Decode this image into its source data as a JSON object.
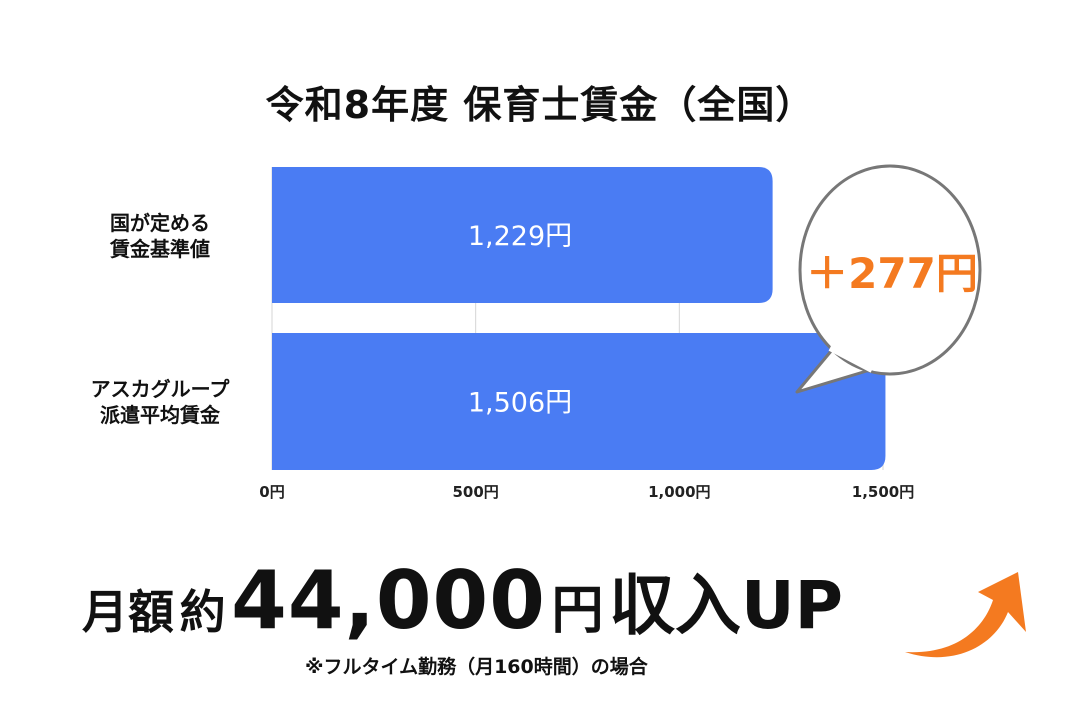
{
  "chart_data": {
    "type": "bar",
    "orientation": "horizontal",
    "title": "令和8年度 保育士賃金（全国）",
    "categories": [
      [
        "国が定める",
        "賃金基準値"
      ],
      [
        "アスカグループ",
        "派遣平均賃金"
      ]
    ],
    "values": [
      1229,
      1506
    ],
    "data_labels": [
      "1,229円",
      "1,506円"
    ],
    "xlim": [
      0,
      1500
    ],
    "x_ticks": [
      0,
      500,
      1000,
      1500
    ],
    "x_tick_labels": [
      "0円",
      "500円",
      "1,000円",
      "1,500円"
    ],
    "grid": true,
    "bar_color": "#4a7cf3",
    "annotation": {
      "text": "＋277円",
      "color": "#f47a20",
      "shape": "speech-bubble"
    }
  },
  "headline": {
    "prefix": "月額",
    "approx": "約",
    "amount": "44,000",
    "unit": "円",
    "suffix": "収入UP",
    "arrow_color": "#f47a20"
  },
  "note": "※フルタイム勤務（月160時間）の場合"
}
